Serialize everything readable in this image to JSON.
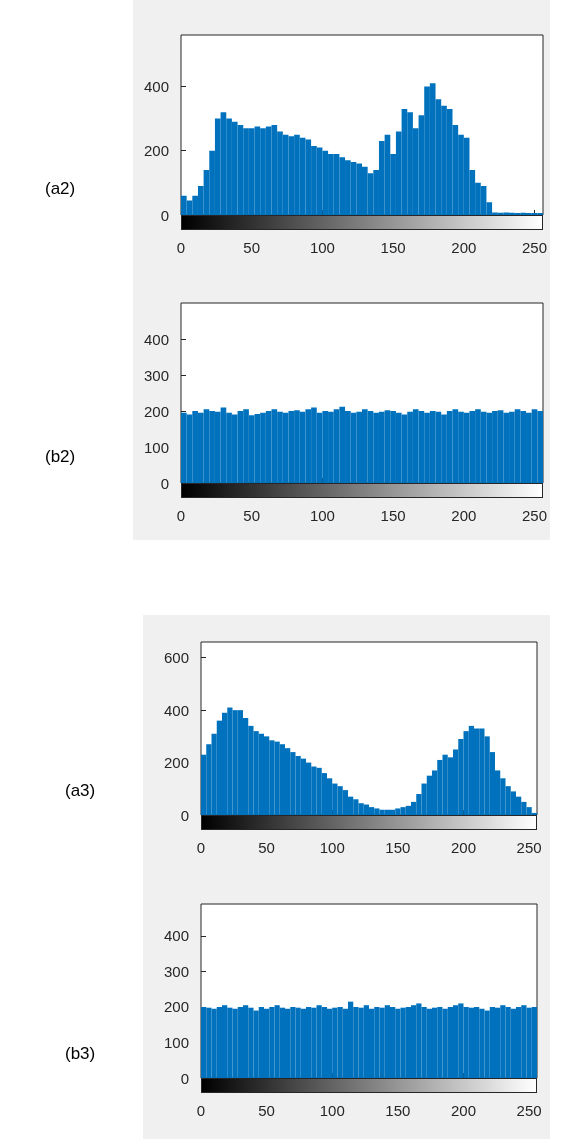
{
  "chart_data": [
    {
      "type": "histogram",
      "title": "(a2)",
      "color": "#0072bd",
      "xlim": [
        0,
        256
      ],
      "ylim": [
        0,
        560
      ],
      "xticks": [
        0,
        50,
        100,
        150,
        200,
        250
      ],
      "yticks": [
        0,
        200,
        400
      ],
      "bins": [
        0,
        4,
        8,
        12,
        16,
        20,
        24,
        28,
        32,
        36,
        40,
        44,
        48,
        52,
        56,
        60,
        64,
        68,
        72,
        76,
        80,
        84,
        88,
        92,
        96,
        100,
        104,
        108,
        112,
        116,
        120,
        124,
        128,
        132,
        136,
        140,
        144,
        148,
        152,
        156,
        160,
        164,
        168,
        172,
        176,
        180,
        184,
        188,
        192,
        196,
        200,
        204,
        208,
        212,
        216,
        220,
        224,
        228,
        232,
        236,
        240,
        244,
        248,
        252,
        256
      ],
      "values": [
        60,
        45,
        60,
        90,
        140,
        200,
        300,
        320,
        300,
        290,
        280,
        270,
        270,
        275,
        270,
        275,
        280,
        260,
        250,
        245,
        250,
        240,
        235,
        215,
        210,
        200,
        190,
        190,
        180,
        170,
        165,
        160,
        150,
        130,
        140,
        230,
        250,
        190,
        260,
        330,
        320,
        270,
        310,
        400,
        410,
        360,
        340,
        330,
        280,
        250,
        240,
        140,
        100,
        90,
        40,
        8,
        7,
        8,
        7,
        6,
        7,
        6,
        6,
        6
      ]
    },
    {
      "type": "histogram",
      "title": "(b2)",
      "color": "#0072bd",
      "xlim": [
        0,
        256
      ],
      "ylim": [
        0,
        500
      ],
      "xticks": [
        0,
        50,
        100,
        150,
        200,
        250
      ],
      "yticks": [
        0,
        100,
        200,
        300,
        400
      ],
      "bins": [
        0,
        4,
        8,
        12,
        16,
        20,
        24,
        28,
        32,
        36,
        40,
        44,
        48,
        52,
        56,
        60,
        64,
        68,
        72,
        76,
        80,
        84,
        88,
        92,
        96,
        100,
        104,
        108,
        112,
        116,
        120,
        124,
        128,
        132,
        136,
        140,
        144,
        148,
        152,
        156,
        160,
        164,
        168,
        172,
        176,
        180,
        184,
        188,
        192,
        196,
        200,
        204,
        208,
        212,
        216,
        220,
        224,
        228,
        232,
        236,
        240,
        244,
        248,
        252,
        256
      ],
      "values": [
        195,
        190,
        200,
        195,
        205,
        200,
        198,
        210,
        195,
        190,
        200,
        205,
        188,
        192,
        195,
        200,
        205,
        198,
        195,
        200,
        202,
        198,
        205,
        210,
        195,
        200,
        198,
        205,
        212,
        200,
        195,
        198,
        205,
        200,
        195,
        198,
        202,
        200,
        195,
        190,
        198,
        205,
        200,
        195,
        200,
        198,
        190,
        200,
        205,
        198,
        195,
        200,
        205,
        198,
        195,
        200,
        202,
        195,
        198,
        205,
        200,
        195,
        205,
        200
      ]
    },
    {
      "type": "histogram",
      "title": "(a3)",
      "color": "#0072bd",
      "xlim": [
        0,
        256
      ],
      "ylim": [
        0,
        660
      ],
      "xticks": [
        0,
        50,
        100,
        150,
        200,
        250
      ],
      "yticks": [
        0,
        200,
        400,
        600
      ],
      "bins": [
        0,
        4,
        8,
        12,
        16,
        20,
        24,
        28,
        32,
        36,
        40,
        44,
        48,
        52,
        56,
        60,
        64,
        68,
        72,
        76,
        80,
        84,
        88,
        92,
        96,
        100,
        104,
        108,
        112,
        116,
        120,
        124,
        128,
        132,
        136,
        140,
        144,
        148,
        152,
        156,
        160,
        164,
        168,
        172,
        176,
        180,
        184,
        188,
        192,
        196,
        200,
        204,
        208,
        212,
        216,
        220,
        224,
        228,
        232,
        236,
        240,
        244,
        248,
        252,
        256
      ],
      "values": [
        230,
        270,
        310,
        360,
        390,
        410,
        400,
        400,
        370,
        340,
        320,
        310,
        300,
        285,
        280,
        270,
        255,
        240,
        225,
        215,
        200,
        185,
        180,
        160,
        140,
        120,
        110,
        95,
        70,
        60,
        45,
        40,
        30,
        25,
        20,
        20,
        20,
        25,
        30,
        35,
        50,
        80,
        120,
        150,
        170,
        210,
        230,
        220,
        250,
        290,
        320,
        340,
        330,
        330,
        300,
        240,
        170,
        140,
        110,
        90,
        70,
        50,
        30,
        8
      ]
    },
    {
      "type": "histogram",
      "title": "(b3)",
      "color": "#0072bd",
      "xlim": [
        0,
        256
      ],
      "ylim": [
        0,
        490
      ],
      "xticks": [
        0,
        50,
        100,
        150,
        200,
        250
      ],
      "yticks": [
        0,
        100,
        200,
        300,
        400
      ],
      "bins": [
        0,
        4,
        8,
        12,
        16,
        20,
        24,
        28,
        32,
        36,
        40,
        44,
        48,
        52,
        56,
        60,
        64,
        68,
        72,
        76,
        80,
        84,
        88,
        92,
        96,
        100,
        104,
        108,
        112,
        116,
        120,
        124,
        128,
        132,
        136,
        140,
        144,
        148,
        152,
        156,
        160,
        164,
        168,
        172,
        176,
        180,
        184,
        188,
        192,
        196,
        200,
        204,
        208,
        212,
        216,
        220,
        224,
        228,
        232,
        236,
        240,
        244,
        248,
        252,
        256
      ],
      "values": [
        200,
        198,
        195,
        200,
        205,
        198,
        195,
        200,
        205,
        198,
        190,
        200,
        195,
        200,
        205,
        198,
        195,
        200,
        198,
        195,
        200,
        198,
        205,
        200,
        195,
        198,
        200,
        195,
        215,
        200,
        198,
        205,
        195,
        200,
        198,
        205,
        200,
        195,
        198,
        200,
        205,
        210,
        200,
        195,
        198,
        200,
        195,
        200,
        205,
        210,
        200,
        198,
        200,
        195,
        190,
        200,
        198,
        205,
        200,
        195,
        200,
        205,
        198,
        200
      ]
    }
  ]
}
